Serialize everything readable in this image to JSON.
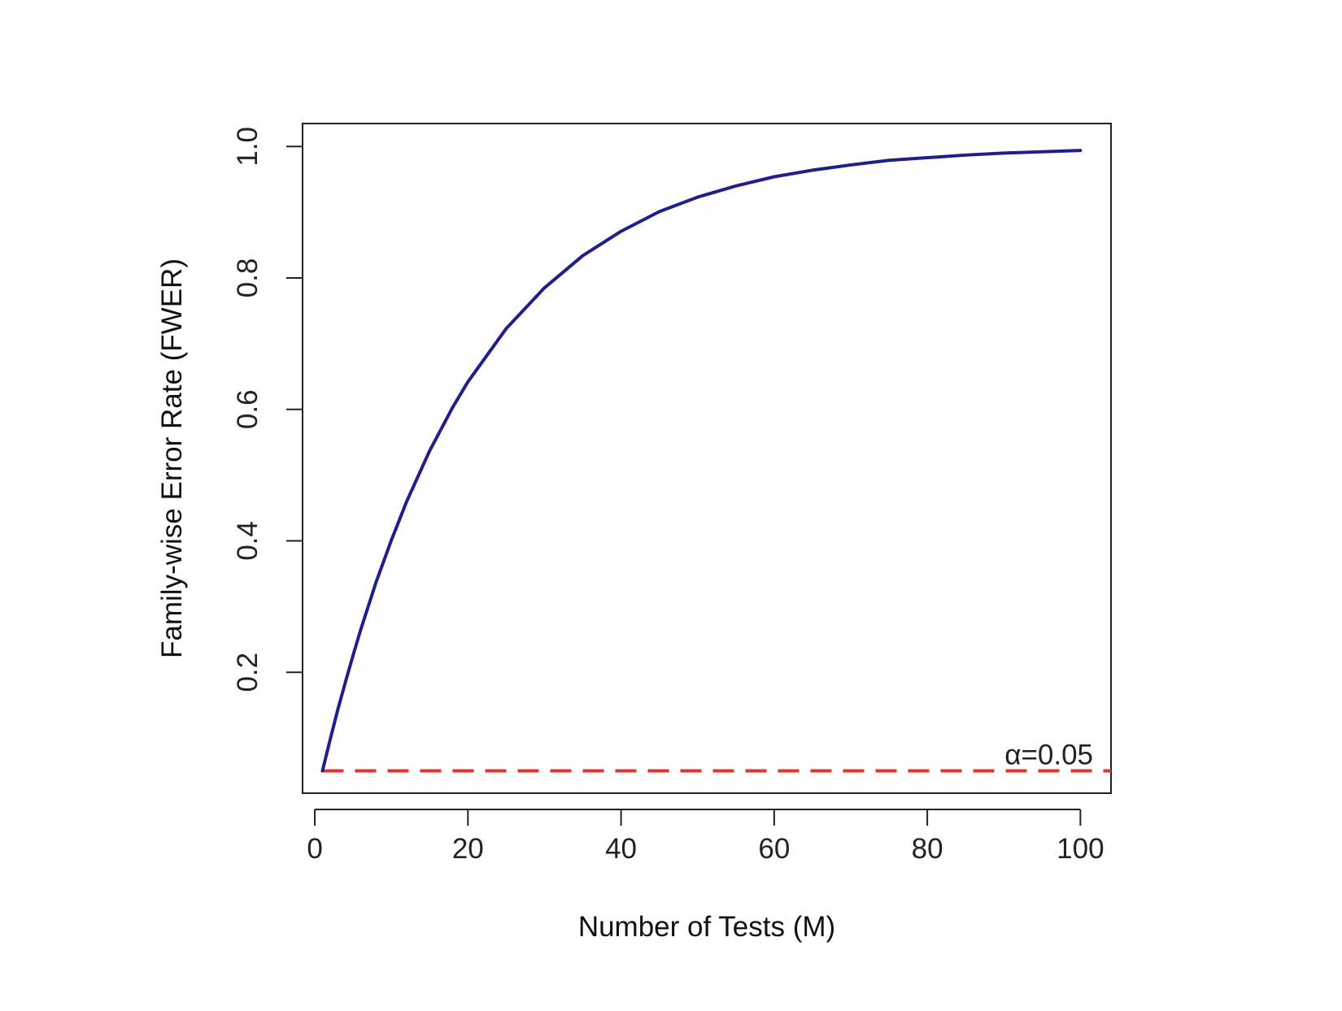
{
  "chart_data": {
    "type": "line",
    "title": "",
    "xlabel": "Number of Tests (M)",
    "ylabel": "Family-wise Error Rate (FWER)",
    "xlim": [
      -1.6,
      104
    ],
    "ylim": [
      0.016,
      1.035
    ],
    "x_ticks": [
      0,
      20,
      40,
      60,
      80,
      100
    ],
    "y_ticks": [
      0.2,
      0.4,
      0.6,
      0.8,
      1.0
    ],
    "x_tick_labels": [
      "0",
      "20",
      "40",
      "60",
      "80",
      "100"
    ],
    "y_tick_labels": [
      "0.2",
      "0.4",
      "0.6",
      "0.8",
      "1.0"
    ],
    "grid": false,
    "legend": "none",
    "series": [
      {
        "color": "#1f1f8c",
        "style": "solid",
        "x": [
          1,
          2,
          3,
          4,
          5,
          6,
          8,
          10,
          12,
          15,
          18,
          20,
          25,
          30,
          35,
          40,
          45,
          50,
          55,
          60,
          65,
          70,
          75,
          80,
          85,
          90,
          95,
          100
        ],
        "values": [
          0.05,
          0.0975,
          0.143,
          0.185,
          0.226,
          0.265,
          0.337,
          0.401,
          0.46,
          0.537,
          0.603,
          0.642,
          0.723,
          0.785,
          0.834,
          0.871,
          0.901,
          0.923,
          0.94,
          0.954,
          0.964,
          0.972,
          0.979,
          0.983,
          0.987,
          0.99,
          0.992,
          0.994
        ]
      }
    ],
    "reference_line": {
      "y": 0.05,
      "color": "#e8302c",
      "style": "dashed",
      "label": "α=0.05"
    }
  },
  "colors": {
    "frame": "#222222",
    "curve": "#1f1f8c",
    "alpha_line": "#e8302c"
  }
}
